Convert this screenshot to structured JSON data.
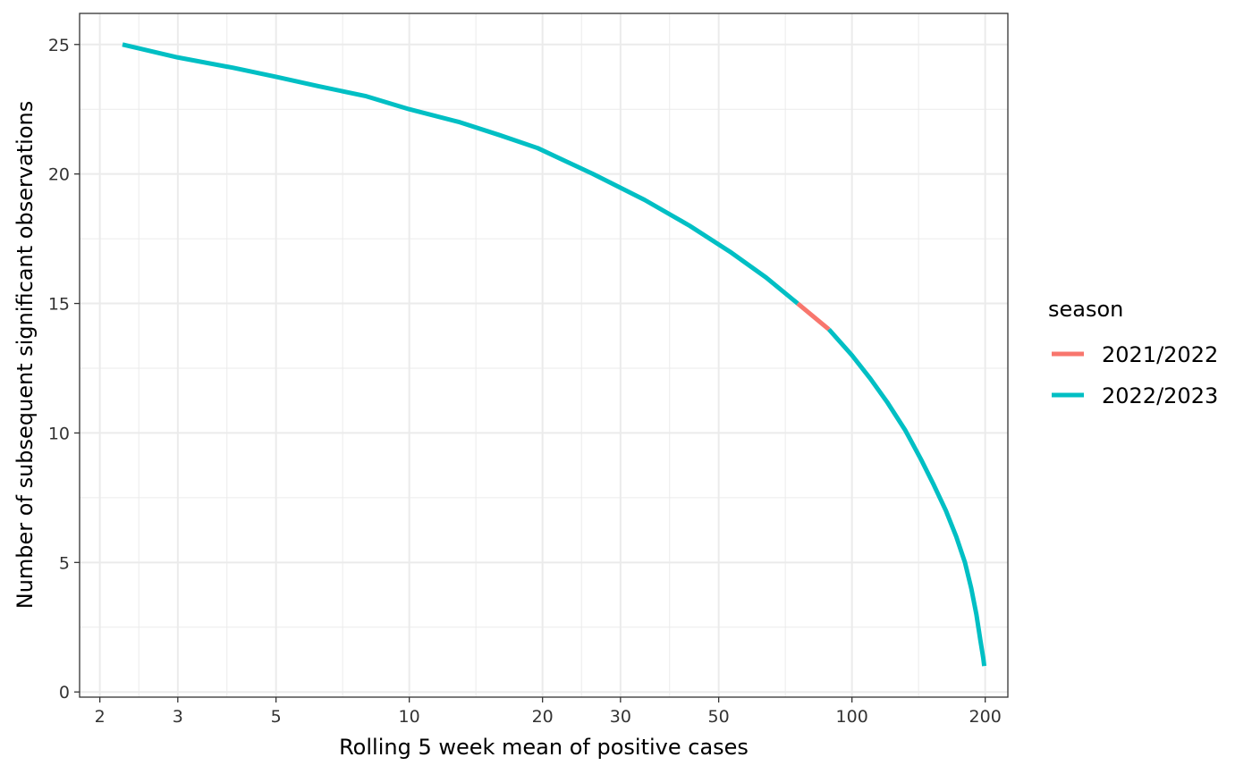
{
  "chart_data": {
    "type": "line",
    "xlabel": "Rolling 5 week mean of positive cases",
    "ylabel": "Number of subsequent significant observations",
    "x_scale": "log10",
    "xlim": [
      1.8,
      225
    ],
    "ylim": [
      -0.2,
      26.2
    ],
    "x_ticks": [
      2,
      3,
      5,
      10,
      20,
      30,
      50,
      100,
      200
    ],
    "x_tick_labels": [
      "2",
      "3",
      "5",
      "10",
      "20",
      "30",
      "50",
      "100",
      "200"
    ],
    "y_ticks": [
      0,
      5,
      10,
      15,
      20,
      25
    ],
    "y_tick_labels": [
      "0",
      "5",
      "10",
      "15",
      "20",
      "25"
    ],
    "grid": true,
    "legend": {
      "title": "season",
      "position": "right"
    },
    "series": [
      {
        "name": "2021/2022",
        "color": "#F8766D",
        "x": [
          75.4,
          88.7
        ],
        "y": [
          15,
          14
        ]
      },
      {
        "name": "2022/2023",
        "color": "#00BFC4",
        "segments": [
          {
            "x": [
              2.25,
              3,
              4,
              5,
              6.2,
              8,
              10,
              13,
              16,
              19.5,
              26,
              34,
              43,
              53,
              64,
              75.4
            ],
            "y": [
              25,
              24.5,
              24.1,
              23.75,
              23.4,
              23,
              22.5,
              22,
              21.5,
              21,
              20,
              19,
              18,
              17,
              16,
              15
            ]
          },
          {
            "x": [
              88.7,
              100,
              110,
              120,
              132,
              143,
              153,
              163,
              172,
              180,
              186,
              191,
              195,
              198,
              199
            ],
            "y": [
              14,
              13,
              12.1,
              11.2,
              10.1,
              9,
              8,
              7,
              6,
              5,
              4,
              3,
              2,
              1.3,
              1
            ]
          }
        ]
      }
    ]
  }
}
